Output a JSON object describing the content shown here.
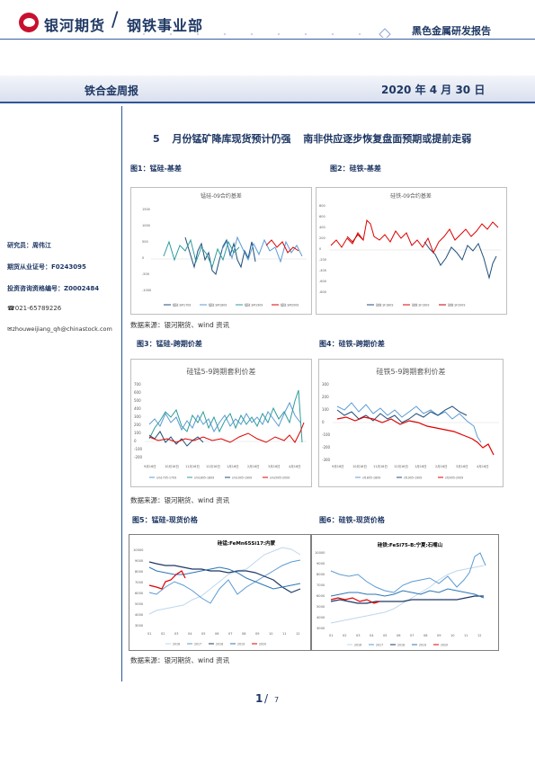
{
  "header": {
    "brand": "银河期货",
    "department": "钢铁事业部",
    "report_type": "黑色金属研发报告"
  },
  "band": {
    "report_name": "铁合金周报",
    "date": "2020 年 4 月 30 日"
  },
  "sidebar": {
    "researcher": "研究员：周伟江",
    "license": "期货从业证号：F0243095",
    "consult_license": "投资咨询资格编号：Z0002484",
    "phone": "021-65789226",
    "email": "zhouweijiang_qh@chinastock.com"
  },
  "headline": "5 月份锰矿降库现货预计仍强 南非供应逐步恢复盘面预期或提前走弱",
  "figures": [
    {
      "label": "图1：锰硅-基差",
      "chart_title": "锰硅-09合约基差"
    },
    {
      "label": "图2：硅铁-基差",
      "chart_title": "硅铁-09合约基差"
    },
    {
      "label": "图3：锰硅-跨期价差",
      "chart_title": "硅锰5-9跨期套利价差"
    },
    {
      "label": "图4：硅铁-跨期价差",
      "chart_title": "硅铁5-9跨期套利价差"
    },
    {
      "label": "图5：锰硅-现货价格",
      "chart_title": "硅锰:FeMn65Si17:内蒙"
    },
    {
      "label": "图6：硅铁-现货价格",
      "chart_title": "硅铁:FeSi75-B:宁夏:石嘴山"
    }
  ],
  "source_text": "数据来源：银河期货、wind 资讯",
  "chart_data": [
    {
      "type": "line",
      "title": "锰硅-09合约基差",
      "yticks": [
        "1500",
        "1000",
        "500",
        "0",
        "-500",
        "-1000"
      ],
      "ylim": [
        -1000,
        1500
      ],
      "series": [
        {
          "name": "锰硅 SM1709",
          "color": "#1f4e79"
        },
        {
          "name": "锰硅 SM1809",
          "color": "#5b9bd5"
        },
        {
          "name": "锰硅 SM1909",
          "color": "#2e9c9c"
        },
        {
          "name": "锰硅 SM2009",
          "color": "#e00000"
        }
      ]
    },
    {
      "type": "line",
      "title": "硅铁-09合约基差",
      "yticks": [
        "800",
        "600",
        "400",
        "200",
        "0",
        "-200",
        "-400",
        "-600",
        "-800"
      ],
      "ylim": [
        -800,
        800
      ],
      "series": [
        {
          "name": "硅铁 SF1809",
          "color": "#1f4e79"
        },
        {
          "name": "硅铁 SF1909",
          "color": "#e00000"
        },
        {
          "name": "硅铁 SF2009",
          "color": "#c00000"
        }
      ]
    },
    {
      "type": "line",
      "title": "硅锰5-9跨期套利价差",
      "yticks": [
        "700",
        "600",
        "500",
        "400",
        "300",
        "200",
        "100",
        "0",
        "-100",
        "-200"
      ],
      "xticks": [
        "9月16日",
        "10月16日",
        "11月16日",
        "12月16日",
        "1月16日",
        "2月16日",
        "3月16日",
        "4月16日"
      ],
      "ylim": [
        -200,
        700
      ],
      "series": [
        {
          "name": "sm1705-1709",
          "color": "#5b9bd5"
        },
        {
          "name": "sm1805-1809",
          "color": "#2e9c9c"
        },
        {
          "name": "sm1905-1909",
          "color": "#1f4e79"
        },
        {
          "name": "sm2005-2009",
          "color": "#e00000"
        }
      ]
    },
    {
      "type": "line",
      "title": "硅铁5-9跨期套利价差",
      "yticks": [
        "300",
        "200",
        "100",
        "0",
        "-100",
        "-200",
        "-300"
      ],
      "xticks": [
        "9月16日",
        "10月16日",
        "11月16日",
        "12月16日",
        "1月16日",
        "2月16日",
        "3月16日",
        "4月16日"
      ],
      "ylim": [
        -300,
        300
      ],
      "series": [
        {
          "name": "sf1805-1809",
          "color": "#5b9bd5"
        },
        {
          "name": "sf1905-1909",
          "color": "#1f4e79"
        },
        {
          "name": "sf2005-2009",
          "color": "#e00000"
        }
      ]
    },
    {
      "type": "line",
      "title": "硅锰:FeMn65Si17:内蒙",
      "yticks": [
        "10000",
        "9000",
        "8000",
        "7000",
        "6000",
        "5000",
        "4000",
        "3000"
      ],
      "xticks": [
        "01",
        "02",
        "03",
        "04",
        "05",
        "06",
        "07",
        "08",
        "09",
        "10",
        "11",
        "12"
      ],
      "ylim": [
        3000,
        10000
      ],
      "series": [
        {
          "name": "2016",
          "color": "#bdd7ee"
        },
        {
          "name": "2017",
          "color": "#5b9bd5"
        },
        {
          "name": "2018",
          "color": "#1f3864"
        },
        {
          "name": "2019",
          "color": "#2e75b6"
        },
        {
          "name": "2020",
          "color": "#e00000"
        }
      ]
    },
    {
      "type": "line",
      "title": "硅铁:FeSi75-B:宁夏:石嘴山",
      "yticks": [
        "10000",
        "9000",
        "8000",
        "7000",
        "6000",
        "5000",
        "4000",
        "3000"
      ],
      "xticks": [
        "01",
        "02",
        "03",
        "04",
        "05",
        "06",
        "07",
        "08",
        "09",
        "10",
        "11",
        "12"
      ],
      "ylim": [
        3000,
        10000
      ],
      "series": [
        {
          "name": "2016",
          "color": "#bdd7ee"
        },
        {
          "name": "2017",
          "color": "#5b9bd5"
        },
        {
          "name": "2018",
          "color": "#1f3864"
        },
        {
          "name": "2019",
          "color": "#2e75b6"
        },
        {
          "name": "2020",
          "color": "#e00000"
        }
      ]
    }
  ],
  "page": {
    "current": "1",
    "separator": "/",
    "total": "7"
  }
}
